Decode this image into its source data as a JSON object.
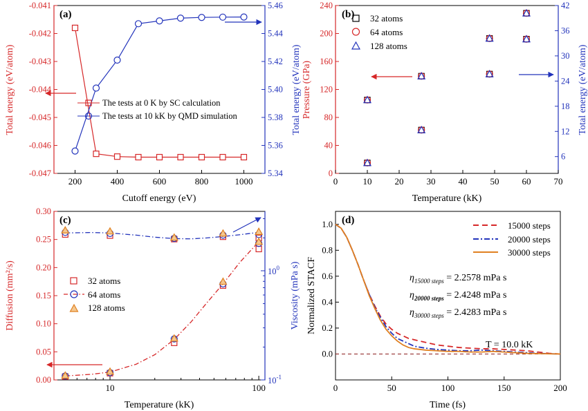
{
  "colors": {
    "red": "#d62728",
    "blue": "#2233bb",
    "orange": "#e08020",
    "black": "#000000"
  },
  "chart_data": [
    {
      "id": "a",
      "panel_label": "(a)",
      "type": "line",
      "xlabel": "Cutoff energy (eV)",
      "ylabel_left": "Total energy (eV/atom)",
      "ylabel_right": "Total energy (eV/atom)",
      "xlim": [
        100,
        1100
      ],
      "x_ticks": [
        200,
        400,
        600,
        800,
        1000
      ],
      "ylim_left": [
        -0.047,
        -0.041
      ],
      "y_ticks_left": [
        "-0.047",
        "-0.046",
        "-0.045",
        "-0.044",
        "-0.043",
        "-0.042",
        "-0.041"
      ],
      "ylim_right": [
        5.34,
        5.46
      ],
      "y_ticks_right": [
        "5.34",
        "5.36",
        "5.38",
        "5.40",
        "5.42",
        "5.44",
        "5.46"
      ],
      "series": [
        {
          "name": "The tests at 0 K by SC calculation",
          "axis": "left",
          "marker": "square",
          "color": "#d62728",
          "x": [
            200,
            300,
            400,
            500,
            600,
            700,
            800,
            900,
            1000
          ],
          "y": [
            -0.0418,
            -0.0463,
            -0.0464,
            -0.04642,
            -0.04642,
            -0.04642,
            -0.04642,
            -0.04642,
            -0.04642
          ]
        },
        {
          "name": "The tests at 10 kK by QMD simulation",
          "axis": "right",
          "marker": "circle",
          "color": "#2233bb",
          "x": [
            200,
            300,
            400,
            500,
            600,
            700,
            800,
            900,
            1000
          ],
          "y": [
            5.356,
            5.401,
            5.421,
            5.447,
            5.449,
            5.451,
            5.4515,
            5.4517,
            5.4518
          ]
        }
      ]
    },
    {
      "id": "b",
      "panel_label": "(b)",
      "type": "scatter",
      "xlabel": "Temperature (kK)",
      "ylabel_left": "Pressure (GPa)",
      "ylabel_right": "Total energy (eV/atom)",
      "xlim": [
        0,
        70
      ],
      "x_ticks": [
        0,
        10,
        20,
        30,
        40,
        50,
        60,
        70
      ],
      "ylim_left": [
        0,
        240
      ],
      "y_ticks_left": [
        0,
        40,
        80,
        120,
        160,
        200,
        240
      ],
      "ylim_right": [
        2,
        42
      ],
      "y_ticks_right": [
        6,
        12,
        18,
        24,
        30,
        36,
        42
      ],
      "series": [
        {
          "name": "32 atoms",
          "marker": "square",
          "color": "#000000",
          "x": [
            10,
            10,
            27,
            27,
            48.4,
            48.4,
            60,
            60
          ],
          "y": [
            15,
            105,
            62,
            139,
            142,
            193,
            192,
            229
          ]
        },
        {
          "name": "64 atoms",
          "marker": "circle",
          "color": "#d62728",
          "x": [
            10,
            10,
            27,
            27,
            48.4,
            48.4,
            60,
            60
          ],
          "y": [
            15,
            105,
            62,
            139,
            142,
            193,
            192,
            229
          ]
        },
        {
          "name": "128 atoms",
          "marker": "triangle",
          "color": "#2233bb",
          "x": [
            10,
            10,
            27,
            27,
            48.4,
            48.4,
            60,
            60
          ],
          "y": [
            15,
            105,
            62,
            139,
            142,
            193,
            192,
            229
          ]
        }
      ]
    },
    {
      "id": "c",
      "panel_label": "(c)",
      "type": "line",
      "xlabel": "Temperature (kK)",
      "x_scale": "log",
      "ylabel_left": "Diffusion (mm²/s)",
      "ylabel_right": "Viscosity (mPa s)",
      "xlim": [
        4.2,
        110
      ],
      "x_ticks": [
        10,
        100
      ],
      "ylim_left": [
        0,
        0.3
      ],
      "y_ticks_left": [
        "0.00",
        "0.05",
        "0.10",
        "0.15",
        "0.20",
        "0.25",
        "0.30"
      ],
      "ylim_right_log": [
        0.1,
        3.5
      ],
      "y_ticks_right": [
        {
          "value": 0.1,
          "label": "10",
          "sup": "-1"
        },
        {
          "value": 1,
          "label": "10",
          "sup": "0"
        }
      ],
      "temperatures": [
        5,
        10,
        27,
        57.5,
        100
      ],
      "series": [
        {
          "name": "32 atoms",
          "marker": "square",
          "color": "#d62728",
          "diffusion": [
            0.006,
            0.012,
            0.066,
            0.168,
            0.233
          ],
          "viscosity": [
            2.15,
            2.1,
            1.95,
            2.05,
            2.0
          ]
        },
        {
          "name": "64 atoms",
          "marker": "circle",
          "color": "#2233bb",
          "diffusion": [
            0.007,
            0.013,
            0.073,
            0.171,
            0.243
          ],
          "viscosity": [
            2.25,
            2.2,
            1.98,
            2.12,
            2.15
          ]
        },
        {
          "name": "128 atoms",
          "marker": "triangle",
          "color": "#e08020",
          "diffusion": [
            0.008,
            0.015,
            0.074,
            0.175,
            0.246
          ],
          "viscosity": [
            2.35,
            2.3,
            2.02,
            2.2,
            2.28
          ]
        }
      ],
      "fit_diffusion": {
        "color": "#d62728",
        "x": [
          5,
          7.5,
          10,
          15,
          20,
          27,
          35,
          45,
          57.5,
          75,
          100
        ],
        "y": [
          0.007,
          0.01,
          0.014,
          0.028,
          0.045,
          0.072,
          0.103,
          0.138,
          0.171,
          0.21,
          0.246
        ]
      },
      "fit_viscosity": {
        "color": "#2233bb",
        "x": [
          5,
          7.5,
          10,
          15,
          20,
          27,
          35,
          45,
          57.5,
          75,
          100
        ],
        "y": [
          2.22,
          2.24,
          2.22,
          2.12,
          2.03,
          1.97,
          1.96,
          2.0,
          2.06,
          2.14,
          2.25
        ]
      }
    },
    {
      "id": "d",
      "panel_label": "(d)",
      "type": "line",
      "xlabel": "Time (fs)",
      "ylabel": "Normalized STACF",
      "xlim": [
        0,
        200
      ],
      "x_ticks": [
        0,
        50,
        100,
        150,
        200
      ],
      "ylim": [
        -0.2,
        1.1
      ],
      "y_ticks": [
        "0.0",
        "0.2",
        "0.4",
        "0.6",
        "0.8",
        "1.0"
      ],
      "series": [
        {
          "name": "15000 steps",
          "style": "dashed",
          "color": "#d62728",
          "x": [
            0,
            5,
            10,
            15,
            20,
            25,
            30,
            35,
            40,
            45,
            50,
            55,
            60,
            65,
            70,
            80,
            90,
            100,
            110,
            120,
            130,
            140,
            150,
            160,
            170,
            180,
            190,
            200
          ],
          "y": [
            1.0,
            0.97,
            0.9,
            0.8,
            0.69,
            0.57,
            0.46,
            0.37,
            0.29,
            0.23,
            0.19,
            0.16,
            0.14,
            0.12,
            0.11,
            0.09,
            0.07,
            0.06,
            0.05,
            0.045,
            0.04,
            0.04,
            0.035,
            0.03,
            0.025,
            0.015,
            0.005,
            0.0
          ]
        },
        {
          "name": "20000 steps",
          "style": "dashdot",
          "color": "#2233bb",
          "x": [
            0,
            5,
            10,
            15,
            20,
            25,
            30,
            35,
            40,
            45,
            50,
            55,
            60,
            65,
            70,
            80,
            90,
            100,
            110,
            120,
            130,
            140,
            150,
            160,
            170,
            180,
            190,
            200
          ],
          "y": [
            1.0,
            0.97,
            0.9,
            0.8,
            0.69,
            0.57,
            0.46,
            0.36,
            0.28,
            0.21,
            0.16,
            0.12,
            0.1,
            0.08,
            0.06,
            0.045,
            0.035,
            0.03,
            0.025,
            0.025,
            0.03,
            0.025,
            0.02,
            0.015,
            0.01,
            0.005,
            0.002,
            0.0
          ]
        },
        {
          "name": "30000 steps",
          "style": "solid",
          "color": "#e08020",
          "x": [
            0,
            5,
            10,
            15,
            20,
            25,
            30,
            35,
            40,
            45,
            50,
            55,
            60,
            65,
            70,
            80,
            90,
            100,
            110,
            120,
            130,
            140,
            150,
            160,
            170,
            180,
            190,
            200
          ],
          "y": [
            1.0,
            0.97,
            0.9,
            0.8,
            0.69,
            0.57,
            0.45,
            0.35,
            0.26,
            0.19,
            0.14,
            0.1,
            0.07,
            0.05,
            0.04,
            0.03,
            0.025,
            0.02,
            0.02,
            0.015,
            0.015,
            0.02,
            0.015,
            0.01,
            0.005,
            0.003,
            0.001,
            0.0
          ]
        }
      ],
      "annotations": {
        "eta_symbol": "η",
        "eta_lines": [
          {
            "sub": "15000 steps",
            "value": " = 2.2578 mPa s"
          },
          {
            "sub": "20000 steps",
            "value": " = 2.4248 mPa s"
          },
          {
            "sub": "30000 steps",
            "value": " = 2.4283 mPa s"
          }
        ],
        "temperature": "T = 10.0 kK"
      }
    }
  ]
}
